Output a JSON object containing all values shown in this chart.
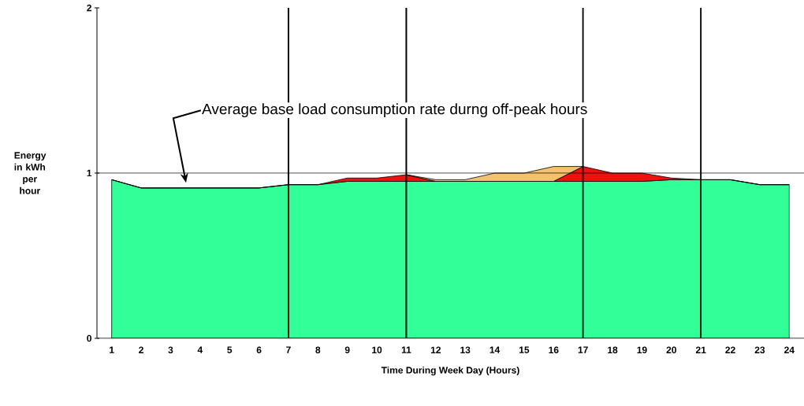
{
  "chart_data": {
    "type": "area",
    "stacked": true,
    "xlabel": "Time During Week Day (Hours)",
    "ylabel": "Energy in kWh per hour",
    "categories": [
      "1",
      "2",
      "3",
      "4",
      "5",
      "6",
      "7",
      "8",
      "9",
      "10",
      "11",
      "12",
      "13",
      "14",
      "15",
      "16",
      "17",
      "18",
      "19",
      "20",
      "21",
      "22",
      "23",
      "24"
    ],
    "series": [
      {
        "color": "#33ff99",
        "values": [
          0.96,
          0.91,
          0.91,
          0.91,
          0.91,
          0.91,
          0.93,
          0.93,
          0.95,
          0.95,
          0.95,
          0.95,
          0.95,
          0.95,
          0.95,
          0.95,
          0.95,
          0.95,
          0.95,
          0.96,
          0.96,
          0.96,
          0.93,
          0.93
        ]
      },
      {
        "color": "#ee1111",
        "values": [
          0,
          0,
          0,
          0,
          0,
          0,
          0,
          0,
          0.02,
          0.02,
          0.04,
          0,
          0,
          0,
          0,
          0,
          0.09,
          0.05,
          0.05,
          0.01,
          0,
          0,
          0,
          0
        ]
      },
      {
        "color": "#f5c16c",
        "values": [
          null,
          null,
          null,
          null,
          null,
          null,
          null,
          null,
          null,
          null,
          0,
          0.01,
          0.01,
          0.05,
          0.05,
          0.09,
          0,
          null,
          null,
          null,
          null,
          null,
          null,
          null
        ]
      }
    ],
    "ylim": [
      0,
      2
    ],
    "yticks": [
      0,
      1,
      2
    ],
    "ref_lines": [
      {
        "axis": "y",
        "value": 1,
        "color": "#000000"
      },
      {
        "axis": "x",
        "value": "7",
        "color": "#000000"
      },
      {
        "axis": "x",
        "value": "11",
        "color": "#000000"
      },
      {
        "axis": "x",
        "value": "17",
        "color": "#000000"
      },
      {
        "axis": "x",
        "value": "21",
        "color": "#000000"
      }
    ],
    "annotations": [
      "Average base load consumption rate durng off-peak hours"
    ]
  }
}
